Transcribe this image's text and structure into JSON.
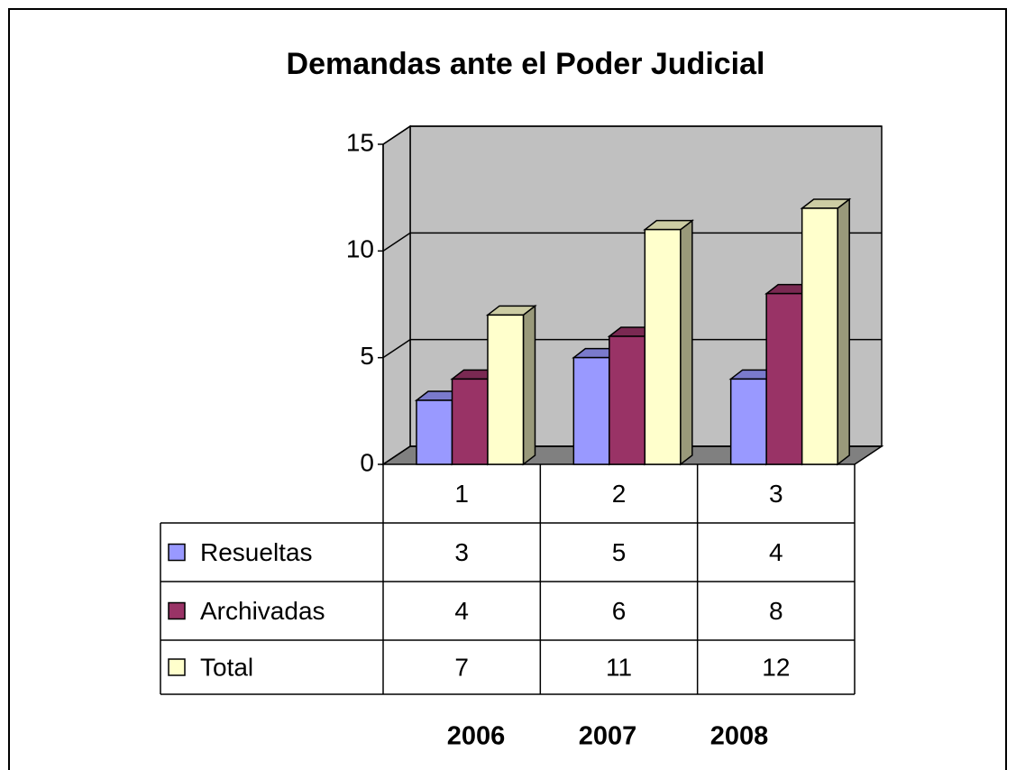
{
  "chart_data": {
    "type": "bar3d",
    "title": "Demandas ante el Poder Judicial",
    "categories": [
      "1",
      "2",
      "3"
    ],
    "series": [
      {
        "name": "Resueltas",
        "color": "#9999ff",
        "values": [
          3,
          5,
          4
        ]
      },
      {
        "name": "Archivadas",
        "color": "#993366",
        "values": [
          4,
          6,
          8
        ]
      },
      {
        "name": "Total",
        "color": "#ffffcc",
        "values": [
          7,
          11,
          12
        ]
      }
    ],
    "ylim": [
      0,
      15
    ],
    "yticks": [
      0,
      5,
      10,
      15
    ],
    "grid": true,
    "annotations": [
      "2006",
      "2007",
      "2008"
    ]
  }
}
